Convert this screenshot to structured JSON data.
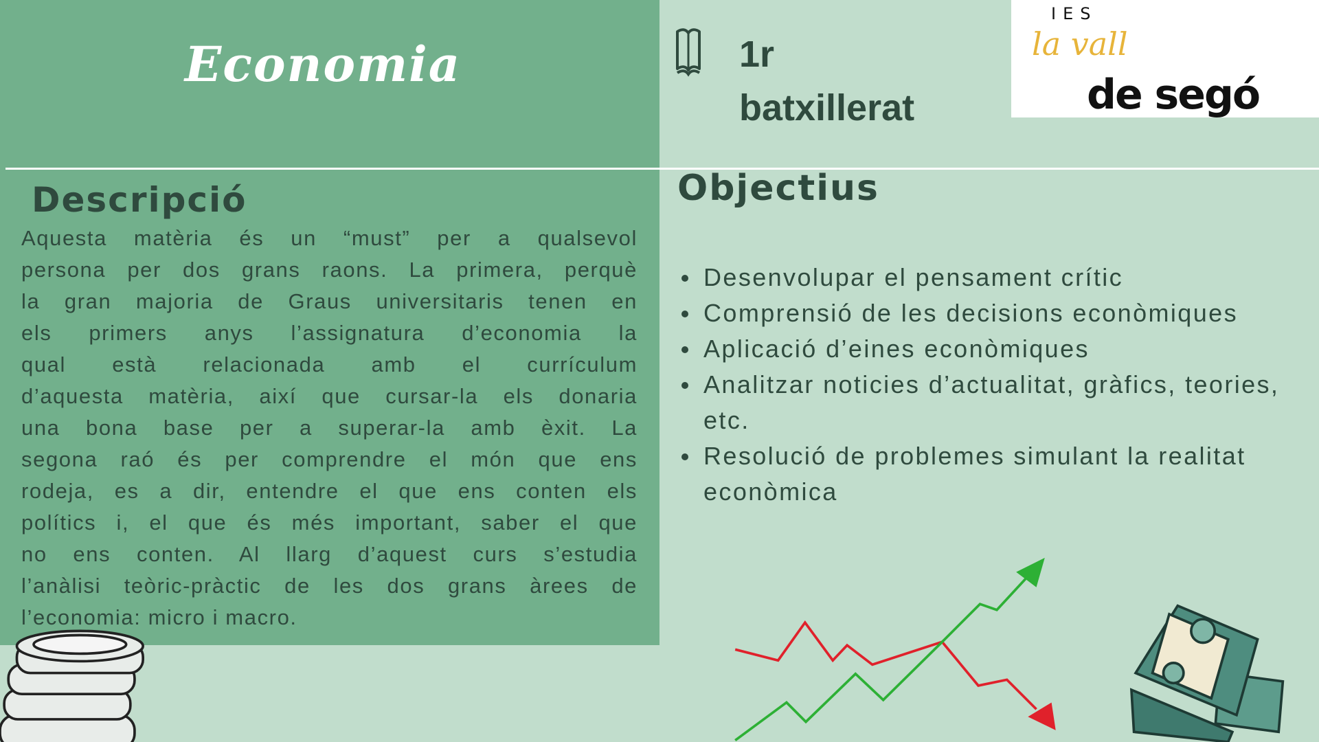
{
  "header": {
    "title": "Economia",
    "level_line1": "1r",
    "level_line2": "batxillerat",
    "logo": {
      "top": "IES",
      "script": "la vall",
      "bottom": "de segó"
    },
    "icons": {
      "book": "book-open-icon"
    }
  },
  "description": {
    "heading": "Descripció",
    "lines": [
      "Aquesta matèria és un “must” per a qualsevol",
      "persona per dos grans raons. La primera, perquè",
      "la gran majoria de Graus universitaris tenen en",
      "els primers anys l’assignatura d’economia la",
      "qual està relacionada amb el currículum",
      "d’aquesta matèria, així que cursar-la els donaria",
      "una bona base per a superar-la amb èxit. La",
      "segona raó és per comprendre el món que ens",
      "rodeja, es a dir, entendre el que ens conten els",
      "polítics i, el que és més important, saber el que",
      "no ens conten. Al llarg d’aquest curs s’estudia",
      "l’anàlisi teòric-pràctic de les dos grans àrees de",
      "l’economia: micro i macro."
    ]
  },
  "objectives": {
    "heading": "Objectius",
    "items": [
      "Desenvolupar el pensament crític",
      "Comprensió de les decisions econòmiques",
      "Aplicació d’eines econòmiques",
      "Analitzar noticies d’actualitat, gràfics, teories, etc.",
      "Resolució de problemes simulant la realitat econòmica"
    ]
  },
  "colors": {
    "panel": "#72b08c",
    "background": "#c1ddcc",
    "text": "#2f4a3e",
    "up": "#2db035",
    "down": "#e0212b"
  },
  "decorations": [
    "coin-stack-icon",
    "trend-arrows-icon",
    "money-stack-icon"
  ]
}
